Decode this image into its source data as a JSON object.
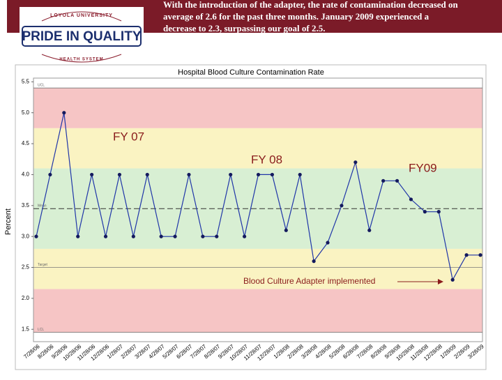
{
  "banner": {
    "lines": [
      "With the introduction of the adapter, the rate of contamination decreased on",
      "average of 2.6 for the past three months. January 2009 experienced a",
      "decrease to 2.3, surpassing our goal of 2.5."
    ]
  },
  "logo": {
    "top": "LOYOLA UNIVERSITY",
    "main": "PRIDE IN QUALITY",
    "bottom": "HEALTH SYSTEM"
  },
  "chart_data": {
    "type": "line",
    "title": "Hospital Blood Culture Contamination Rate",
    "y_label": "Percent",
    "categories": [
      "7/28/06",
      "8/28/06",
      "9/28/06",
      "10/28/06",
      "11/28/06",
      "12/28/06",
      "1/28/07",
      "2/28/07",
      "3/28/07",
      "4/28/07",
      "5/28/07",
      "6/28/07",
      "7/28/07",
      "8/28/07",
      "9/28/07",
      "10/28/07",
      "11/28/07",
      "12/28/07",
      "1/28/08",
      "2/28/08",
      "3/28/08",
      "4/28/08",
      "5/28/08",
      "6/28/08",
      "7/28/08",
      "8/28/08",
      "9/28/08",
      "10/28/08",
      "11/28/08",
      "12/28/08",
      "1/28/09",
      "2/28/09",
      "3/28/09"
    ],
    "values": [
      3.0,
      4.0,
      5.0,
      3.0,
      4.0,
      3.0,
      4.0,
      3.0,
      4.0,
      3.0,
      3.0,
      4.0,
      3.0,
      3.0,
      4.0,
      3.0,
      4.0,
      4.0,
      3.1,
      4.0,
      2.6,
      2.9,
      3.5,
      4.2,
      3.1,
      3.9,
      3.9,
      3.6,
      3.4,
      3.4,
      2.3,
      2.7,
      2.7
    ],
    "color": "#1f35a8",
    "ylim": [
      1.3,
      5.56
    ],
    "yticks": [
      1.5,
      {
        "value": 2,
        "label": "2.0"
      },
      2.5,
      {
        "value": 3,
        "label": "3.0"
      },
      3.5,
      {
        "value": 4,
        "label": "4.0"
      },
      4.5,
      {
        "value": 5,
        "label": "5.0"
      },
      5.5
    ],
    "bands": [
      {
        "from": 4.75,
        "to": 5.4,
        "color": "#f6c5c5"
      },
      {
        "from": 4.1,
        "to": 4.75,
        "color": "#faf3c2"
      },
      {
        "from": 2.8,
        "to": 4.1,
        "color": "#d8efd3"
      },
      {
        "from": 2.15,
        "to": 2.8,
        "color": "#faf3c2"
      },
      {
        "from": 1.45,
        "to": 2.15,
        "color": "#f6c5c5"
      }
    ],
    "reference_lines": [
      {
        "label": "UCL",
        "value": 5.4,
        "style": "solid"
      },
      {
        "label": "Mean",
        "value": 3.45,
        "style": "dashed"
      },
      {
        "label": "Target",
        "value": 2.5,
        "style": "solid"
      },
      {
        "label": "LCL",
        "value": 1.45,
        "style": "solid"
      }
    ],
    "annotations": [
      {
        "text": "FY 07"
      },
      {
        "text": "FY 08"
      },
      {
        "text": "FY09"
      },
      {
        "text": "Blood Culture Adapter implemented"
      }
    ]
  }
}
